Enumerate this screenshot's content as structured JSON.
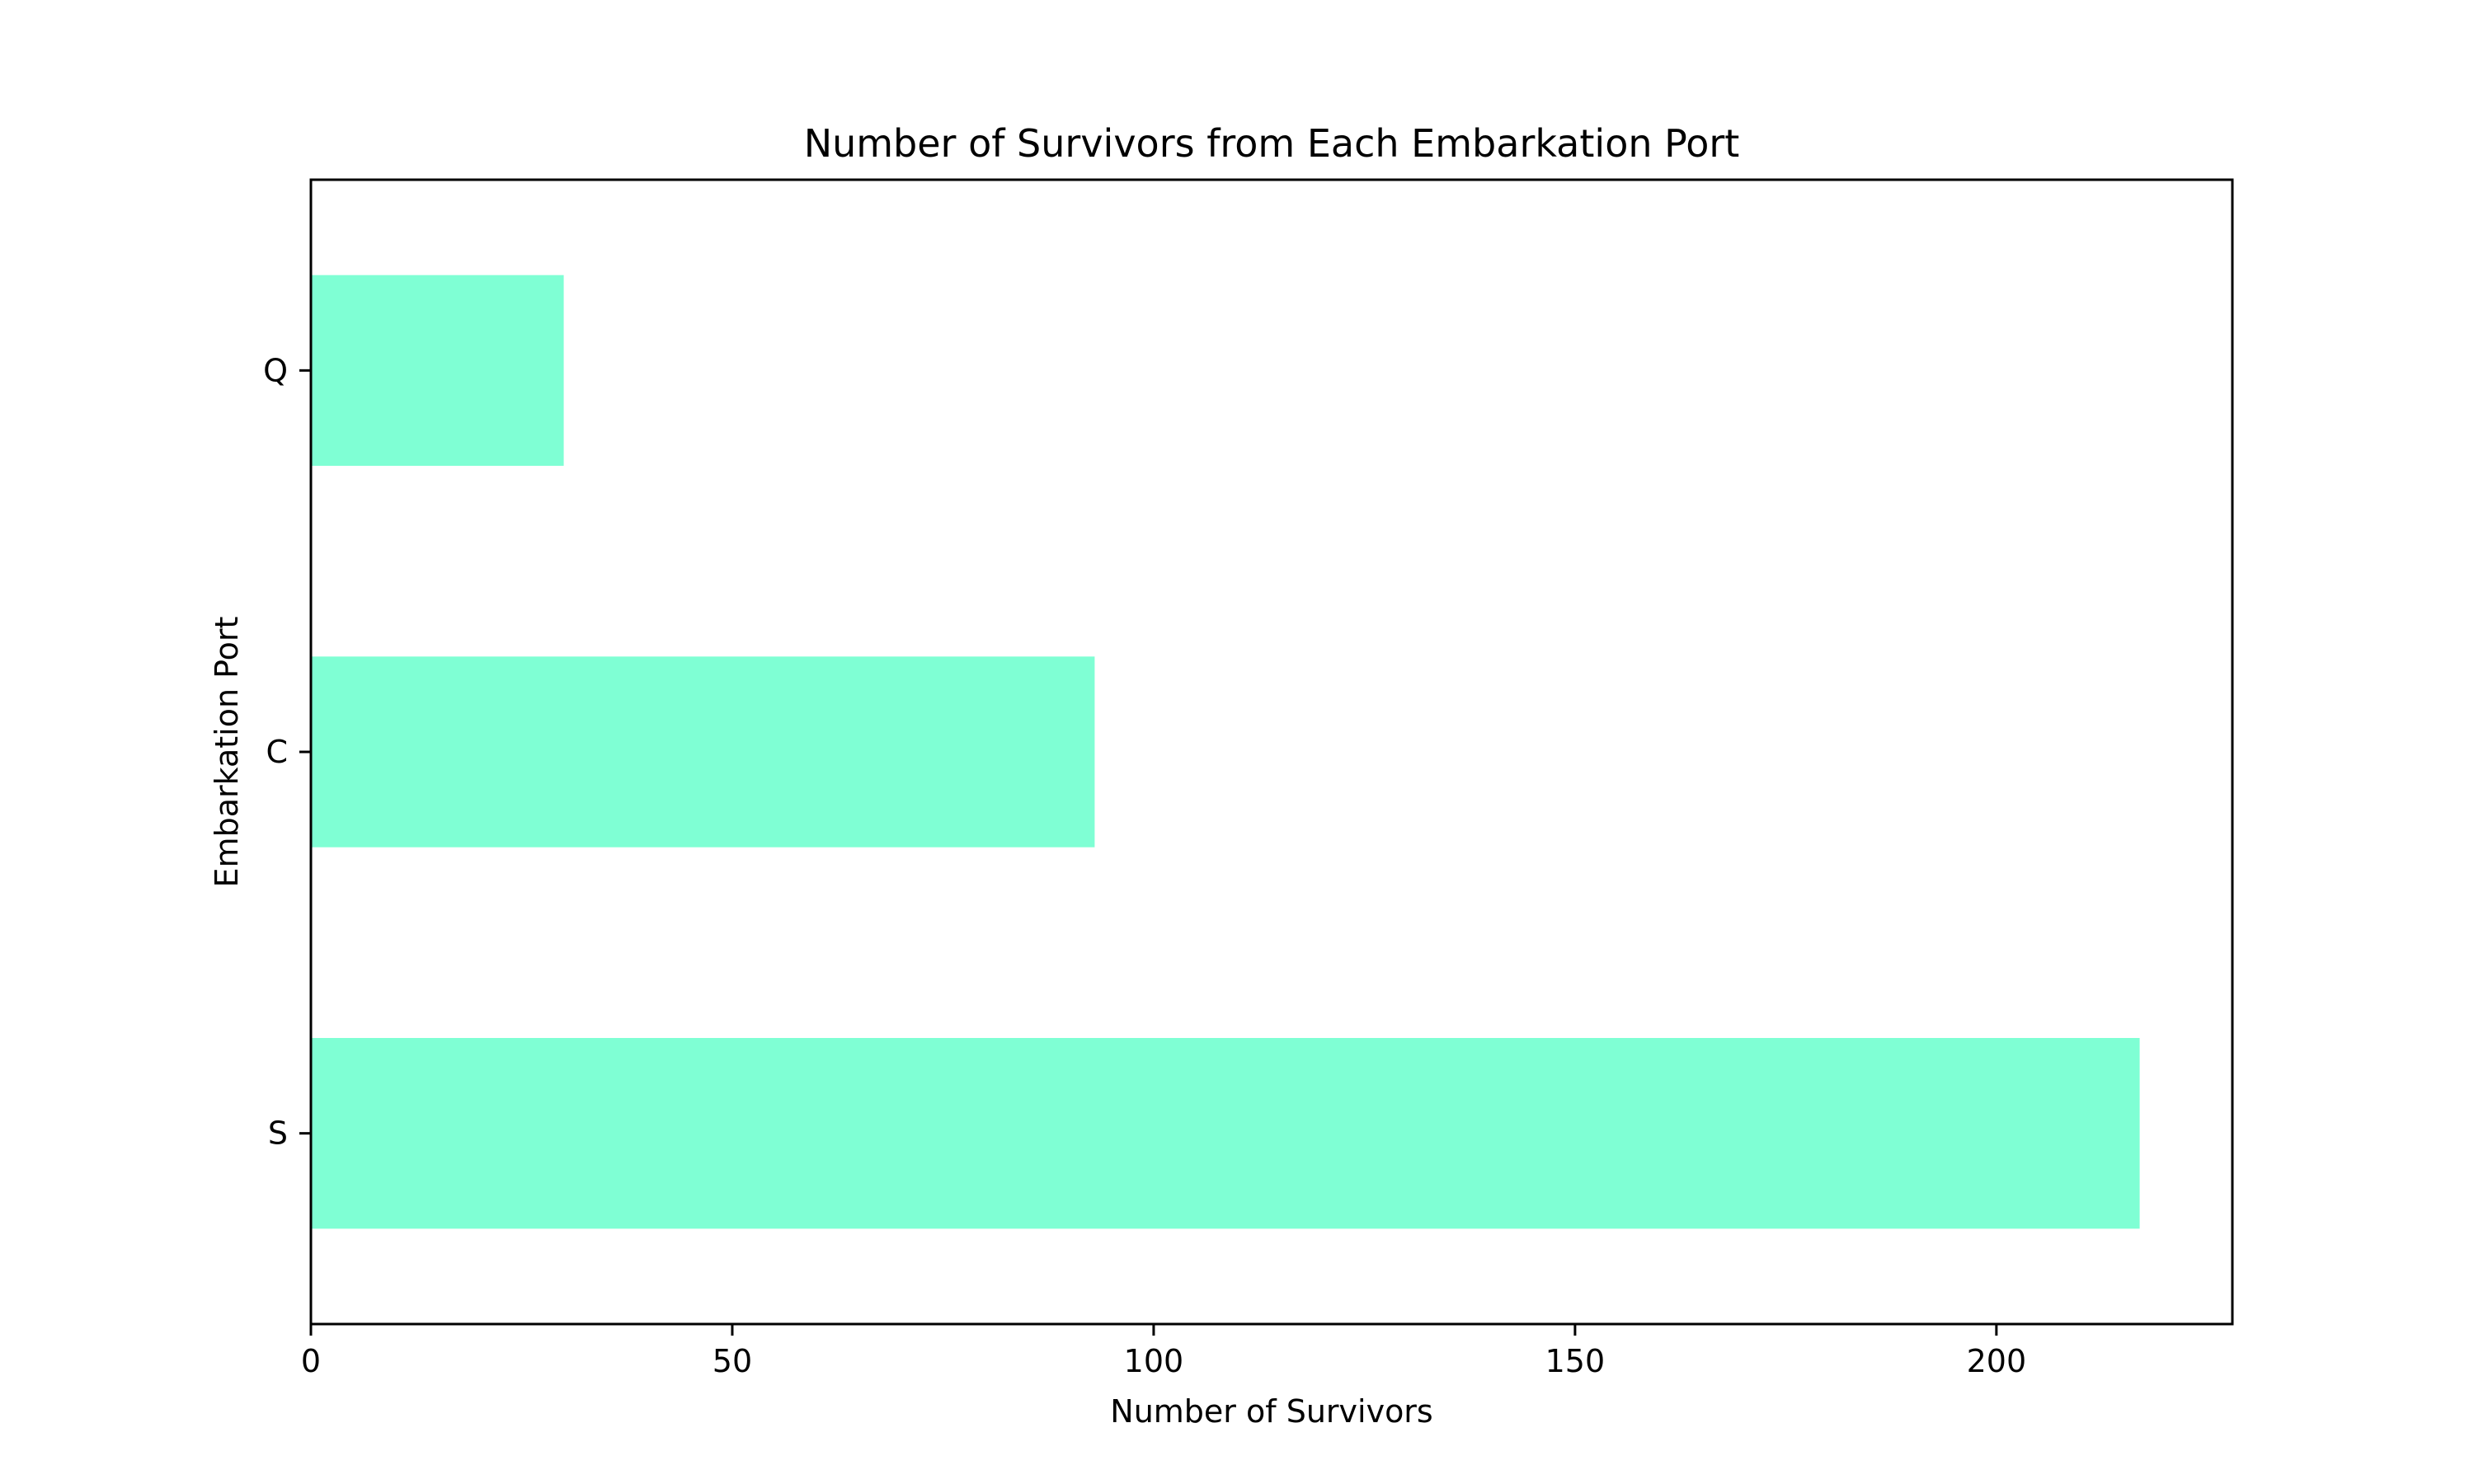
{
  "chart_data": {
    "type": "bar",
    "orientation": "horizontal",
    "title": "Number of Survivors from Each Embarkation Port",
    "xlabel": "Number of Survivors",
    "ylabel": "Embarkation Port",
    "categories": [
      "S",
      "C",
      "Q"
    ],
    "values": [
      217,
      93,
      30
    ],
    "xlim": [
      0,
      228
    ],
    "xticks": [
      0,
      50,
      100,
      150,
      200
    ],
    "grid": false,
    "legend": "none",
    "bar_color": "#7fffd4"
  }
}
